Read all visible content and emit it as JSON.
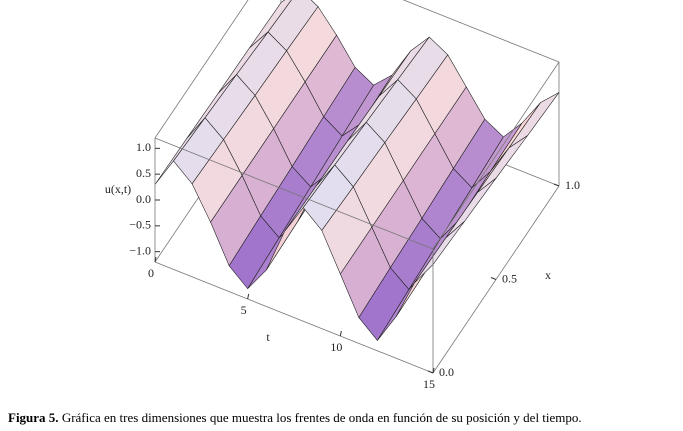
{
  "chart_data": {
    "type": "surface",
    "z_label": "u(x,t)",
    "t_label": "t",
    "x_label": "x",
    "t": [
      0,
      1,
      2,
      3,
      4,
      5,
      6,
      7,
      8,
      9,
      10,
      11,
      12,
      13,
      14,
      15
    ],
    "x": [
      0,
      0.25,
      0.5,
      0.75,
      1
    ],
    "z": [
      [
        0.3,
        0.9,
        0.6,
        0.0,
        -0.7,
        -1.0,
        -0.5,
        0.4,
        1.0,
        0.7,
        0.0,
        -0.7,
        -1.0,
        -0.4,
        0.4,
        0.9
      ],
      [
        0.28,
        0.83,
        0.55,
        0,
        -0.64,
        -0.92,
        -0.46,
        0.37,
        0.92,
        0.64,
        0,
        -0.64,
        -0.92,
        -0.37,
        0.37,
        0.83
      ],
      [
        0.25,
        0.76,
        0.5,
        0,
        -0.59,
        -0.84,
        -0.42,
        0.34,
        0.84,
        0.59,
        0,
        -0.59,
        -0.84,
        -0.34,
        0.34,
        0.76
      ],
      [
        0.23,
        0.68,
        0.46,
        0,
        -0.53,
        -0.76,
        -0.38,
        0.3,
        0.76,
        0.53,
        0,
        -0.53,
        -0.76,
        -0.3,
        0.3,
        0.68
      ],
      [
        0.2,
        0.61,
        0.41,
        0,
        -0.48,
        -0.68,
        -0.34,
        0.27,
        0.68,
        0.48,
        0,
        -0.48,
        -0.68,
        -0.27,
        0.27,
        0.61
      ]
    ],
    "tlim": [
      0,
      15
    ],
    "xlim": [
      0,
      1
    ],
    "zlim": [
      -1.2,
      1.2
    ],
    "tticks": [
      0,
      5,
      10,
      15
    ],
    "xticks": [
      {
        "value": 0,
        "label": "0.0"
      },
      {
        "value": 0.5,
        "label": "0.5"
      },
      {
        "value": 1,
        "label": "1.0"
      }
    ],
    "zticks": [
      {
        "value": 1,
        "label": "1.0"
      },
      {
        "value": 0.5,
        "label": "0.5"
      },
      {
        "value": 0,
        "label": "0.0"
      },
      {
        "value": -0.5,
        "label": "−0.5"
      },
      {
        "value": -1,
        "label": "−1.0"
      }
    ]
  },
  "caption": {
    "label": "Figura 5.",
    "text": "Gráfica en tres dimensiones que muestra los frentes de onda en función de su posición y del tiempo."
  }
}
